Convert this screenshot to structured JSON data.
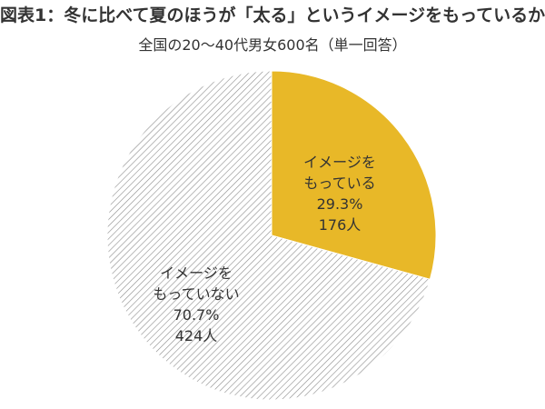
{
  "chart_data": {
    "type": "pie",
    "title": "図表1：冬に比べて夏のほうが「太る」というイメージをもっているか",
    "subtitle": "全国の20～40代男女600名（単一回答）",
    "slices": [
      {
        "label_lines": [
          "イメージを",
          "もっている"
        ],
        "percent": 29.3,
        "percent_text": "29.3%",
        "count_text": "176人",
        "color": "#e8b828"
      },
      {
        "label_lines": [
          "イメージを",
          "もっていない"
        ],
        "percent": 70.7,
        "percent_text": "70.7%",
        "count_text": "424人",
        "color": "#ffffff",
        "pattern": "diagonal-hatch"
      }
    ]
  }
}
